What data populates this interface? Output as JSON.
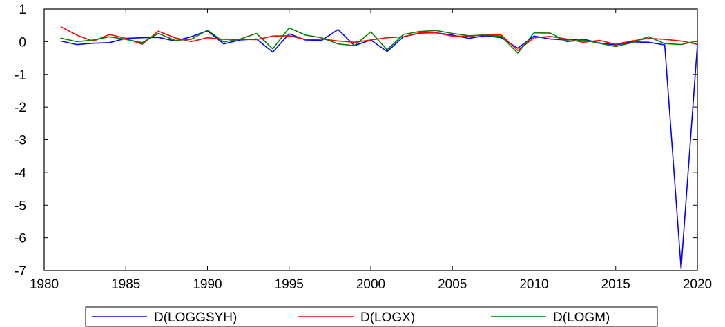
{
  "chart_data": {
    "type": "line",
    "x": [
      1981,
      1982,
      1983,
      1984,
      1985,
      1986,
      1987,
      1988,
      1989,
      1990,
      1991,
      1992,
      1993,
      1994,
      1995,
      1996,
      1997,
      1998,
      1999,
      2000,
      2001,
      2002,
      2003,
      2004,
      2005,
      2006,
      2007,
      2008,
      2009,
      2010,
      2011,
      2012,
      2013,
      2014,
      2015,
      2016,
      2017,
      2018,
      2019,
      2020
    ],
    "xlim": [
      1980,
      2020
    ],
    "ylim": [
      -7,
      1
    ],
    "xticks": [
      1980,
      1985,
      1990,
      1995,
      2000,
      2005,
      2010,
      2015,
      2020
    ],
    "yticks": [
      1,
      0,
      -1,
      -2,
      -3,
      -4,
      -5,
      -6,
      -7
    ],
    "grid": false,
    "legend_position": "bottom",
    "series": [
      {
        "name": "D(LOGGSYH)",
        "color": "#0000ff",
        "values": [
          0.02,
          -0.09,
          -0.05,
          -0.03,
          0.1,
          0.12,
          0.13,
          0.02,
          0.15,
          0.33,
          -0.07,
          0.05,
          0.08,
          -0.32,
          0.24,
          0.05,
          0.04,
          0.37,
          -0.12,
          0.05,
          -0.3,
          0.15,
          0.26,
          0.27,
          0.2,
          0.1,
          0.18,
          0.12,
          -0.2,
          0.17,
          0.08,
          0.05,
          0.08,
          -0.04,
          -0.1,
          -0.01,
          -0.02,
          -0.1,
          -6.95,
          -0.1
        ]
      },
      {
        "name": "D(LOGX)",
        "color": "#ff0000",
        "values": [
          0.46,
          0.2,
          0.01,
          0.22,
          0.1,
          -0.08,
          0.32,
          0.12,
          0.0,
          0.12,
          0.07,
          0.07,
          0.06,
          0.17,
          0.18,
          0.07,
          0.08,
          0.02,
          -0.02,
          0.05,
          0.12,
          0.15,
          0.27,
          0.27,
          0.17,
          0.16,
          0.22,
          0.2,
          -0.27,
          0.12,
          0.16,
          0.08,
          -0.02,
          0.04,
          -0.08,
          0.02,
          0.1,
          0.07,
          0.02,
          -0.08
        ]
      },
      {
        "name": "D(LOGM)",
        "color": "#008000",
        "values": [
          0.11,
          0.0,
          0.05,
          0.15,
          0.07,
          -0.03,
          0.25,
          0.04,
          0.07,
          0.35,
          -0.01,
          0.08,
          0.25,
          -0.22,
          0.42,
          0.2,
          0.12,
          -0.07,
          -0.12,
          0.3,
          -0.25,
          0.22,
          0.31,
          0.34,
          0.25,
          0.18,
          0.2,
          0.16,
          -0.35,
          0.27,
          0.26,
          0.0,
          0.05,
          -0.05,
          -0.15,
          -0.03,
          0.15,
          -0.06,
          -0.09,
          0.02
        ]
      }
    ]
  }
}
